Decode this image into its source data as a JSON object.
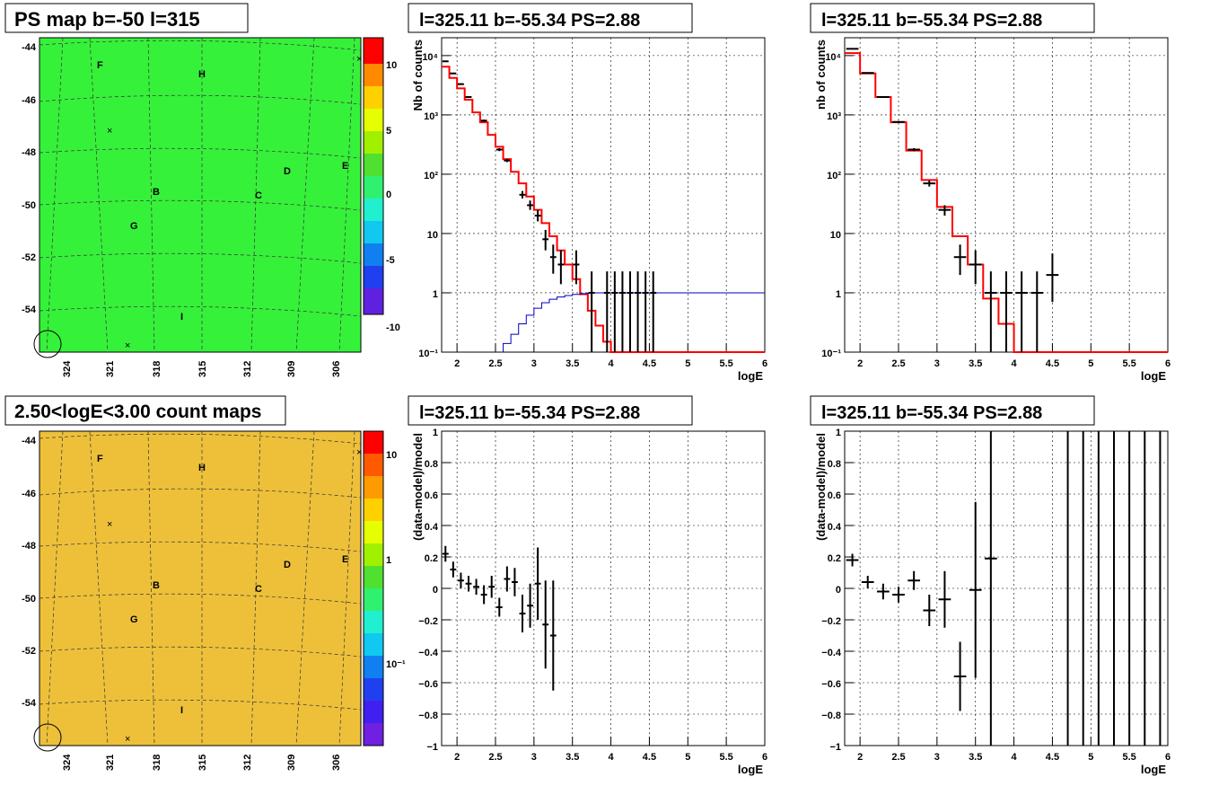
{
  "maps": [
    {
      "title": "PS map b=-50 l=315",
      "fill": "#36f13a",
      "palette_labels": [
        "10",
        "5",
        "0",
        "-5",
        "-10"
      ],
      "y_ticks": [
        "-44",
        "-46",
        "-48",
        "-50",
        "-52",
        "-54"
      ],
      "x_ticks": [
        "324",
        "321",
        "318",
        "315",
        "312",
        "309",
        "306"
      ],
      "markers": [
        "F",
        "H",
        "D",
        "E",
        "B",
        "C",
        "G",
        "I"
      ]
    },
    {
      "title": "2.50<logE<3.00 count maps",
      "fill": "#eec03a",
      "palette_labels": [
        "10",
        "1",
        "10⁻¹"
      ],
      "y_ticks": [
        "-44",
        "-46",
        "-48",
        "-50",
        "-52",
        "-54"
      ],
      "x_ticks": [
        "324",
        "321",
        "318",
        "315",
        "312",
        "309",
        "306"
      ],
      "markers": [
        "F",
        "H",
        "D",
        "E",
        "B",
        "C",
        "G",
        "I"
      ]
    }
  ],
  "chart_data": [
    {
      "type": "line",
      "title": "l=325.11 b=-55.34 PS=2.88",
      "xlabel": "logE",
      "ylabel": "Nb of counts",
      "xlim": [
        1.8,
        6
      ],
      "ylim": [
        0.1,
        20000
      ],
      "yscale": "log",
      "grid": true,
      "x_ticks": [
        "2",
        "2.5",
        "3",
        "3.5",
        "4",
        "4.5",
        "5",
        "5.5",
        "6"
      ],
      "y_ticks": [
        "10⁻¹",
        "1",
        "10",
        "10²",
        "10³",
        "10⁴"
      ],
      "bin_width": 0.1,
      "series": [
        {
          "kind": "model",
          "color": "#ff0000",
          "x": [
            1.85,
            1.95,
            2.05,
            2.15,
            2.25,
            2.35,
            2.45,
            2.55,
            2.65,
            2.75,
            2.85,
            2.95,
            3.05,
            3.15,
            3.25,
            3.35,
            3.45,
            3.55,
            3.65,
            3.75,
            3.85,
            3.95,
            4.05,
            4.15,
            4.25,
            4.35,
            4.45,
            4.55,
            4.65,
            4.75,
            4.85,
            4.95,
            5.05,
            5.15,
            5.25,
            5.35,
            5.45,
            5.55,
            5.65,
            5.75,
            5.85,
            5.95
          ],
          "values": [
            6500,
            4200,
            2800,
            1800,
            1100,
            750,
            460,
            290,
            180,
            110,
            70,
            42,
            25,
            15,
            9,
            5.2,
            3.0,
            1.7,
            0.95,
            0.5,
            0.28,
            0.15,
            0.1,
            0.1,
            0.1,
            0.1,
            0.1,
            0.1,
            0.1,
            0.1,
            0.1,
            0.1,
            0.1,
            0.1,
            0.1,
            0.1,
            0.1,
            0.1,
            0.1,
            0.1,
            0.1,
            0.1
          ]
        },
        {
          "kind": "background",
          "color": "#0000c0",
          "x": [
            2.65,
            2.75,
            2.85,
            2.95,
            3.05,
            3.15,
            3.25,
            3.35,
            3.45,
            3.55,
            3.65,
            3.75,
            3.85,
            3.95,
            4.05,
            4.15,
            4.25,
            4.35,
            4.45,
            4.55,
            4.65,
            4.75,
            4.85,
            4.95,
            5.05,
            5.15,
            5.25,
            5.35,
            5.45,
            5.55,
            5.65,
            5.75,
            5.85,
            5.95
          ],
          "values": [
            0.14,
            0.2,
            0.3,
            0.42,
            0.55,
            0.68,
            0.78,
            0.85,
            0.9,
            0.94,
            0.97,
            1,
            1,
            1,
            1,
            1,
            1,
            1,
            1,
            1,
            1,
            1,
            1,
            1,
            1,
            1,
            1,
            1,
            1,
            1,
            1,
            1,
            1,
            1
          ]
        },
        {
          "kind": "data",
          "color": "#000000",
          "x": [
            1.85,
            1.95,
            2.05,
            2.15,
            2.35,
            2.55,
            2.65,
            2.85,
            2.95,
            3.05,
            3.15,
            3.25,
            3.35,
            3.55,
            3.75,
            3.95,
            4.05,
            4.15,
            4.25,
            4.35,
            4.45,
            4.55
          ],
          "values": [
            8000,
            5000,
            3300,
            2000,
            800,
            260,
            170,
            45,
            30,
            20,
            8,
            4,
            3,
            3,
            1,
            1,
            1,
            1,
            1,
            1,
            1,
            1
          ],
          "err_lo": [
            7900,
            4850,
            3200,
            1950,
            770,
            245,
            160,
            39,
            25,
            16,
            5.2,
            2.1,
            1.4,
            1.4,
            0.1,
            0.1,
            0.1,
            0.1,
            0.1,
            0.1,
            0.1,
            0.1
          ],
          "err_hi": [
            8100,
            5150,
            3400,
            2050,
            830,
            275,
            180,
            52,
            36,
            25,
            11.5,
            6.5,
            5.2,
            5.2,
            2.3,
            2.3,
            2.3,
            2.3,
            2.3,
            2.3,
            2.3,
            2.3
          ]
        }
      ]
    },
    {
      "type": "line",
      "title": "l=325.11 b=-55.34 PS=2.88",
      "xlabel": "logE",
      "ylabel": "nb of counts",
      "xlim": [
        1.8,
        6
      ],
      "ylim": [
        0.1,
        20000
      ],
      "yscale": "log",
      "grid": true,
      "x_ticks": [
        "2",
        "2.5",
        "3",
        "3.5",
        "4",
        "4.5",
        "5",
        "5.5",
        "6"
      ],
      "y_ticks": [
        "10⁻¹",
        "1",
        "10",
        "10²",
        "10³",
        "10⁴"
      ],
      "bin_width": 0.2,
      "series": [
        {
          "kind": "model",
          "color": "#ff0000",
          "x": [
            1.9,
            2.1,
            2.3,
            2.5,
            2.7,
            2.9,
            3.1,
            3.3,
            3.5,
            3.7,
            3.9,
            4.1,
            4.3,
            4.5,
            4.7,
            4.9,
            5.1,
            5.3,
            5.5,
            5.7,
            5.9
          ],
          "values": [
            11000,
            5000,
            2000,
            750,
            250,
            80,
            28,
            9,
            3,
            0.8,
            0.3,
            0.1,
            0.1,
            0.1,
            0.1,
            0.1,
            0.1,
            0.1,
            0.1,
            0.1,
            0.1
          ]
        },
        {
          "kind": "data",
          "color": "#000000",
          "x": [
            1.9,
            2.1,
            2.3,
            2.5,
            2.7,
            2.9,
            3.1,
            3.3,
            3.5,
            3.7,
            3.9,
            4.1,
            4.3,
            4.5
          ],
          "values": [
            13000,
            5100,
            2000,
            760,
            260,
            70,
            25,
            4,
            3,
            1,
            1,
            1,
            1,
            2
          ],
          "err_lo": [
            12900,
            5000,
            1950,
            730,
            245,
            62,
            20,
            2,
            1.4,
            0.1,
            0.1,
            0.1,
            0.1,
            0.7
          ],
          "err_hi": [
            13100,
            5200,
            2050,
            790,
            275,
            78,
            30,
            6.5,
            5.2,
            2.3,
            2.3,
            2.3,
            2.3,
            4.6
          ]
        }
      ]
    },
    {
      "type": "scatter",
      "title": "l=325.11 b=-55.34 PS=2.88",
      "xlabel": "logE",
      "ylabel": "(data-model)/model",
      "xlim": [
        1.8,
        6
      ],
      "ylim": [
        -1,
        1
      ],
      "grid": true,
      "x_ticks": [
        "2",
        "2.5",
        "3",
        "3.5",
        "4",
        "4.5",
        "5",
        "5.5",
        "6"
      ],
      "y_ticks": [
        "−1",
        "−0.8",
        "−0.6",
        "−0.4",
        "−0.2",
        "0",
        "0.2",
        "0.4",
        "0.6",
        "0.8",
        "1"
      ],
      "bin_width": 0.1,
      "series": [
        {
          "kind": "residual",
          "color": "#000000",
          "x": [
            1.85,
            1.95,
            2.05,
            2.15,
            2.25,
            2.35,
            2.45,
            2.55,
            2.65,
            2.75,
            2.85,
            2.95,
            3.05,
            3.15,
            3.25
          ],
          "values": [
            0.22,
            0.12,
            0.05,
            0.03,
            0.01,
            -0.04,
            0.01,
            -0.12,
            0.06,
            0.04,
            -0.16,
            -0.11,
            0.03,
            -0.23,
            -0.3
          ],
          "err": [
            0.05,
            0.05,
            0.05,
            0.05,
            0.05,
            0.06,
            0.07,
            0.06,
            0.08,
            0.09,
            0.12,
            0.14,
            0.23,
            0.28,
            0.35
          ]
        }
      ]
    },
    {
      "type": "scatter",
      "title": "l=325.11 b=-55.34 PS=2.88",
      "xlabel": "logE",
      "ylabel": "(data-model)/model",
      "xlim": [
        1.8,
        6
      ],
      "ylim": [
        -1,
        1
      ],
      "grid": true,
      "x_ticks": [
        "2",
        "2.5",
        "3",
        "3.5",
        "4",
        "4.5",
        "5",
        "5.5",
        "6"
      ],
      "y_ticks": [
        "−1",
        "−0.8",
        "−0.6",
        "−0.4",
        "−0.2",
        "0",
        "0.2",
        "0.4",
        "0.6",
        "0.8",
        "1"
      ],
      "bin_width": 0.2,
      "series": [
        {
          "kind": "residual",
          "color": "#000000",
          "x": [
            1.9,
            2.1,
            2.3,
            2.5,
            2.7,
            2.9,
            3.1,
            3.3,
            3.5,
            3.7,
            4.7,
            4.9,
            5.1,
            5.3,
            5.5,
            5.7,
            5.9
          ],
          "values": [
            0.18,
            0.04,
            -0.02,
            -0.04,
            0.05,
            -0.14,
            -0.07,
            -0.56,
            -0.01,
            0.19,
            1,
            1,
            1,
            1,
            1,
            1,
            1
          ],
          "err": [
            0.04,
            0.04,
            0.05,
            0.05,
            0.06,
            0.1,
            0.18,
            0.22,
            0.56,
            1.2,
            0,
            0,
            0,
            0,
            0,
            0,
            0
          ]
        }
      ]
    }
  ]
}
